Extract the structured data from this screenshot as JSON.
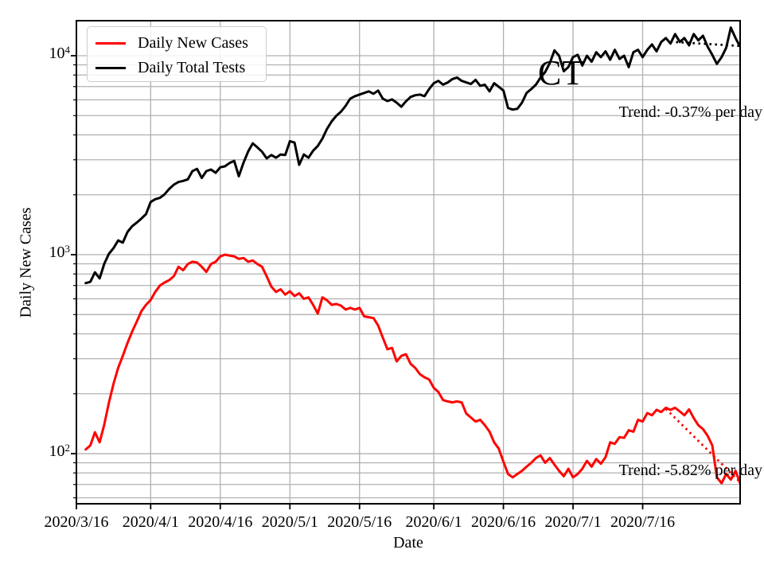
{
  "annotations": {
    "state_label": "CT"
  },
  "colors": {
    "background": "#ffffff",
    "grid": "#b0b0b0",
    "axis": "#000000",
    "cases_line": "#ff0000",
    "tests_line": "#000000"
  },
  "chart_data": {
    "type": "line",
    "state_label": "CT",
    "xlabel": "Date",
    "ylabel": "Daily New Cases",
    "y_scale": "log",
    "grid": "both-major-and-minor",
    "legend": {
      "position": "upper left"
    },
    "ylim": [
      56,
      15000
    ],
    "y_tick_values": [
      100,
      1000,
      10000
    ],
    "y_ticks": [
      {
        "base": "10",
        "exp": "2",
        "value": 100
      },
      {
        "base": "10",
        "exp": "3",
        "value": 1000
      },
      {
        "base": "10",
        "exp": "4",
        "value": 10000
      }
    ],
    "x_axis_start_date": "2020/3/16",
    "x_axis_total_days": 143,
    "x_tick_labels": [
      "2020/3/16",
      "2020/4/1",
      "2020/4/16",
      "2020/5/1",
      "2020/5/16",
      "2020/6/1",
      "2020/6/16",
      "2020/7/1",
      "2020/7/16"
    ],
    "x_tick_day_offsets": [
      0,
      16,
      31,
      46,
      61,
      77,
      92,
      107,
      122
    ],
    "series": [
      {
        "name": "Daily New Cases",
        "color": "#ff0000",
        "start_date": "2020/3/18",
        "start_day_offset": 2,
        "values": [
          105,
          110,
          128,
          114,
          140,
          180,
          225,
          270,
          310,
          360,
          410,
          460,
          520,
          560,
          592,
          650,
          700,
          725,
          745,
          780,
          870,
          835,
          897,
          922,
          914,
          870,
          820,
          897,
          922,
          980,
          1000,
          990,
          980,
          953,
          962,
          922,
          935,
          897,
          870,
          779,
          690,
          650,
          670,
          630,
          655,
          620,
          640,
          600,
          610,
          560,
          506,
          610,
          590,
          560,
          565,
          555,
          530,
          540,
          530,
          540,
          490,
          485,
          480,
          441,
          384,
          335,
          340,
          291,
          310,
          316,
          283,
          270,
          251,
          242,
          236,
          214,
          204,
          186,
          183,
          181,
          183,
          181,
          159,
          152,
          145,
          148,
          139,
          129,
          114,
          106,
          91,
          79,
          76,
          79,
          82,
          86,
          90,
          95,
          98,
          90,
          95,
          88,
          82,
          77,
          84,
          76,
          79,
          84,
          92,
          86,
          94,
          89,
          96,
          114,
          112,
          121,
          120,
          131,
          129,
          148,
          145,
          160,
          156,
          166,
          162,
          170,
          166,
          170,
          163,
          156,
          167,
          151,
          139,
          133,
          123,
          110,
          76,
          71,
          79,
          74,
          82,
          71
        ]
      },
      {
        "name": "Daily Total Tests",
        "color": "#000000",
        "start_date": "2020/3/18",
        "start_day_offset": 2,
        "values": [
          720,
          730,
          815,
          760,
          900,
          1010,
          1080,
          1180,
          1150,
          1300,
          1390,
          1450,
          1520,
          1600,
          1840,
          1900,
          1930,
          2010,
          2140,
          2250,
          2320,
          2350,
          2390,
          2630,
          2700,
          2430,
          2630,
          2680,
          2580,
          2750,
          2780,
          2890,
          2960,
          2480,
          2900,
          3300,
          3630,
          3460,
          3290,
          3050,
          3170,
          3070,
          3190,
          3170,
          3720,
          3660,
          2830,
          3190,
          3070,
          3330,
          3520,
          3830,
          4290,
          4680,
          4990,
          5230,
          5600,
          6090,
          6260,
          6380,
          6500,
          6620,
          6440,
          6680,
          6090,
          5920,
          6030,
          5810,
          5540,
          5900,
          6210,
          6330,
          6380,
          6260,
          6800,
          7270,
          7480,
          7150,
          7340,
          7630,
          7770,
          7480,
          7340,
          7210,
          7560,
          7060,
          7150,
          6620,
          7270,
          6980,
          6680,
          5460,
          5360,
          5410,
          5810,
          6500,
          6800,
          7150,
          7770,
          8280,
          9200,
          10640,
          10000,
          8360,
          8770,
          9840,
          10100,
          8930,
          10000,
          9330,
          10420,
          9840,
          10520,
          9540,
          10710,
          9630,
          10000,
          8770,
          10420,
          10710,
          9840,
          10710,
          11400,
          10520,
          11730,
          12270,
          11520,
          12850,
          11730,
          12270,
          11270,
          12850,
          11950,
          12600,
          11100,
          10100,
          9100,
          9840,
          10960,
          13850,
          12270,
          11100
        ]
      }
    ],
    "trend_lines": [
      {
        "series": "Daily Total Tests",
        "label": "Trend: -0.37% per day",
        "color": "#000000",
        "style": "dotted",
        "x0_day": 128,
        "v0": 11750,
        "x1_day": 143,
        "v1": 11200
      },
      {
        "series": "Daily New Cases",
        "label": "Trend: -5.82% per day",
        "color": "#ff0000",
        "style": "dotted",
        "x0_day": 127,
        "v0": 168,
        "x1_day": 143,
        "v1": 72
      }
    ]
  }
}
